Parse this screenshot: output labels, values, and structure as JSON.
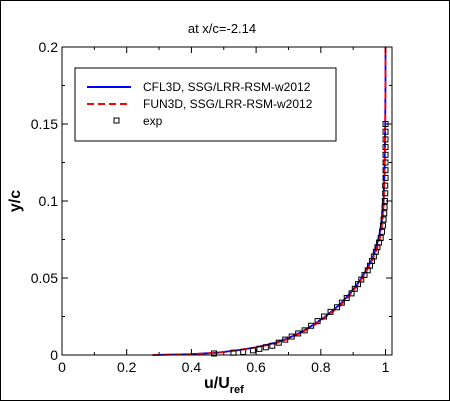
{
  "chart_data": {
    "type": "line",
    "title": "at x/c=-2.14",
    "xlabel": "u/U",
    "xlabel_sub": "ref",
    "ylabel": "y/c",
    "xlim": [
      0,
      1.02
    ],
    "ylim": [
      0,
      0.2
    ],
    "xticks": [
      0,
      0.2,
      0.4,
      0.6,
      0.8,
      1
    ],
    "xtick_labels": [
      "0",
      "0.2",
      "0.4",
      "0.6",
      "0.8",
      "1"
    ],
    "yticks": [
      0,
      0.05,
      0.1,
      0.15,
      0.2
    ],
    "ytick_labels": [
      "0",
      "0.05",
      "0.1",
      "0.15",
      "0.2"
    ],
    "grid": false,
    "legend_position": "top-left",
    "series": [
      {
        "name": "CFL3D, SSG/LRR-RSM-w2012",
        "style": "solid",
        "color": "#0000ff",
        "x": [
          0.28,
          0.4,
          0.48,
          0.54,
          0.6,
          0.66,
          0.7,
          0.74,
          0.78,
          0.82,
          0.86,
          0.89,
          0.92,
          0.94,
          0.96,
          0.97,
          0.98,
          0.985,
          0.99,
          0.994,
          0.997,
          0.999,
          1.0,
          1.0
        ],
        "y": [
          0.0,
          0.0005,
          0.0015,
          0.003,
          0.005,
          0.008,
          0.011,
          0.015,
          0.02,
          0.026,
          0.033,
          0.04,
          0.048,
          0.055,
          0.063,
          0.069,
          0.077,
          0.083,
          0.09,
          0.1,
          0.12,
          0.15,
          0.18,
          0.2
        ]
      },
      {
        "name": "FUN3D, SSG/LRR-RSM-w2012",
        "style": "dashed",
        "color": "#ff0000",
        "x": [
          0.28,
          0.4,
          0.48,
          0.54,
          0.6,
          0.66,
          0.7,
          0.74,
          0.78,
          0.82,
          0.86,
          0.89,
          0.92,
          0.94,
          0.96,
          0.975,
          0.985,
          0.99,
          0.994,
          0.997,
          0.999,
          1.0,
          1.0
        ],
        "y": [
          0.0,
          0.0005,
          0.0015,
          0.003,
          0.005,
          0.0075,
          0.0105,
          0.0145,
          0.0195,
          0.0255,
          0.032,
          0.039,
          0.047,
          0.054,
          0.062,
          0.07,
          0.078,
          0.086,
          0.097,
          0.12,
          0.15,
          0.18,
          0.2
        ]
      },
      {
        "name": "exp",
        "style": "markers",
        "color": "#000000",
        "x": [
          0.47,
          0.53,
          0.56,
          0.59,
          0.61,
          0.63,
          0.65,
          0.67,
          0.69,
          0.71,
          0.73,
          0.75,
          0.77,
          0.79,
          0.81,
          0.83,
          0.85,
          0.865,
          0.88,
          0.895,
          0.905,
          0.915,
          0.925,
          0.935,
          0.945,
          0.952,
          0.958,
          0.964,
          0.97,
          0.975,
          0.98,
          0.985,
          0.989,
          0.992,
          0.994,
          0.996,
          0.997,
          0.998,
          0.999,
          0.999,
          1.0,
          1.0,
          1.0,
          1.0,
          1.0,
          1.0,
          1.0,
          1.0
        ],
        "y": [
          0.001,
          0.0015,
          0.002,
          0.003,
          0.004,
          0.005,
          0.006,
          0.008,
          0.01,
          0.012,
          0.014,
          0.016,
          0.019,
          0.022,
          0.025,
          0.028,
          0.031,
          0.034,
          0.037,
          0.04,
          0.043,
          0.046,
          0.049,
          0.052,
          0.055,
          0.058,
          0.061,
          0.064,
          0.067,
          0.07,
          0.073,
          0.076,
          0.08,
          0.084,
          0.088,
          0.092,
          0.096,
          0.1,
          0.105,
          0.11,
          0.115,
          0.12,
          0.125,
          0.13,
          0.135,
          0.14,
          0.145,
          0.15
        ]
      }
    ]
  }
}
